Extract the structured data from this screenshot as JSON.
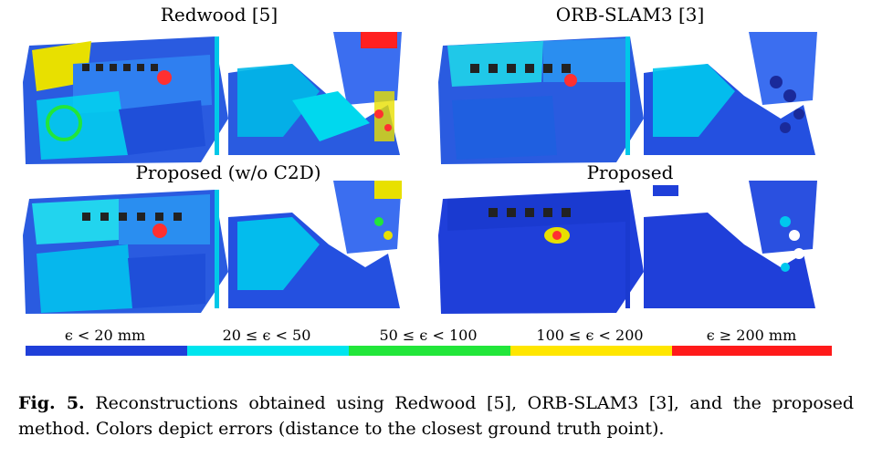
{
  "panels": [
    {
      "title": "Redwood [5]"
    },
    {
      "title": "ORB-SLAM3 [3]"
    },
    {
      "title": "Proposed (w/o C2D)"
    },
    {
      "title": "Proposed"
    }
  ],
  "legend": [
    {
      "label": "ϵ < 20 mm",
      "color": "#1f3fd9"
    },
    {
      "label": "20 ≤ ϵ < 50",
      "color": "#00e5ee"
    },
    {
      "label": "50 ≤ ϵ < 100",
      "color": "#22e63a"
    },
    {
      "label": "100 ≤ ϵ < 200",
      "color": "#ffe600"
    },
    {
      "label": "ϵ ≥ 200 mm",
      "color": "#ff1a1a"
    }
  ],
  "caption": {
    "label": "Fig. 5.",
    "text": "Reconstructions obtained using Redwood [5], ORB-SLAM3 [3], and the proposed method. Colors depict errors (distance to the closest ground truth point)."
  }
}
